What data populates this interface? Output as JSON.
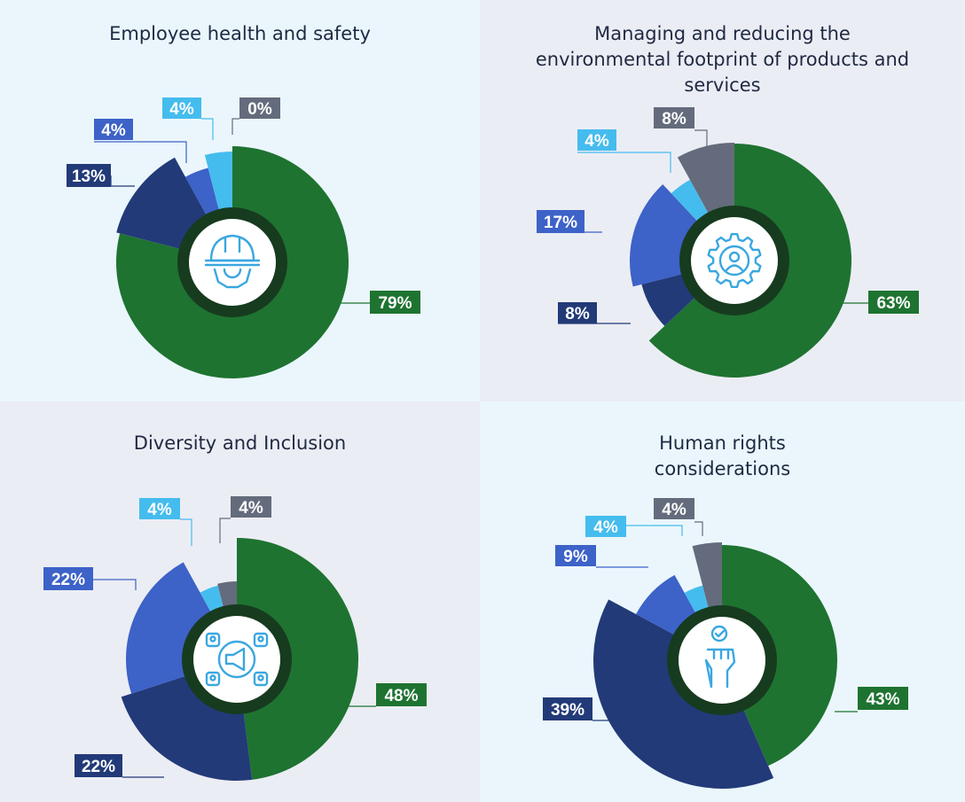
{
  "colors": {
    "green": "#1e7331",
    "navy": "#223a78",
    "blue": "#3d62c8",
    "light_blue": "#45bcee",
    "gray": "#646b7c",
    "center_ring": "#173b1f",
    "icon_line": "#3aa7e0"
  },
  "chart_data": [
    {
      "type": "pie",
      "title": "Employee health and safety",
      "icon": "hardhat-gear-icon",
      "slices": [
        {
          "label": "79%",
          "value": 79,
          "color": "green"
        },
        {
          "label": "13%",
          "value": 13,
          "color": "navy"
        },
        {
          "label": "4%",
          "value": 4,
          "color": "blue"
        },
        {
          "label": "4%",
          "value": 4,
          "color": "light_blue"
        },
        {
          "label": "0%",
          "value": 0,
          "color": "gray"
        }
      ]
    },
    {
      "type": "pie",
      "title": "Managing and reducing the environmental footprint of products and services",
      "icon": "gear-person-icon",
      "slices": [
        {
          "label": "63%",
          "value": 63,
          "color": "green"
        },
        {
          "label": "8%",
          "value": 8,
          "color": "navy"
        },
        {
          "label": "17%",
          "value": 17,
          "color": "blue"
        },
        {
          "label": "4%",
          "value": 4,
          "color": "light_blue"
        },
        {
          "label": "8%",
          "value": 8,
          "color": "gray"
        }
      ]
    },
    {
      "type": "pie",
      "title": "Diversity and Inclusion",
      "icon": "megaphone-network-icon",
      "slices": [
        {
          "label": "48%",
          "value": 48,
          "color": "green"
        },
        {
          "label": "22%",
          "value": 22,
          "color": "navy"
        },
        {
          "label": "22%",
          "value": 22,
          "color": "blue"
        },
        {
          "label": "4%",
          "value": 4,
          "color": "light_blue"
        },
        {
          "label": "4%",
          "value": 4,
          "color": "gray"
        }
      ]
    },
    {
      "type": "pie",
      "title": "Human rights considerations",
      "icon": "raised-fist-check-icon",
      "slices": [
        {
          "label": "43%",
          "value": 43,
          "color": "green"
        },
        {
          "label": "39%",
          "value": 39,
          "color": "navy"
        },
        {
          "label": "9%",
          "value": 9,
          "color": "blue"
        },
        {
          "label": "4%",
          "value": 4,
          "color": "light_blue"
        },
        {
          "label": "4%",
          "value": 4,
          "color": "gray"
        }
      ]
    }
  ]
}
